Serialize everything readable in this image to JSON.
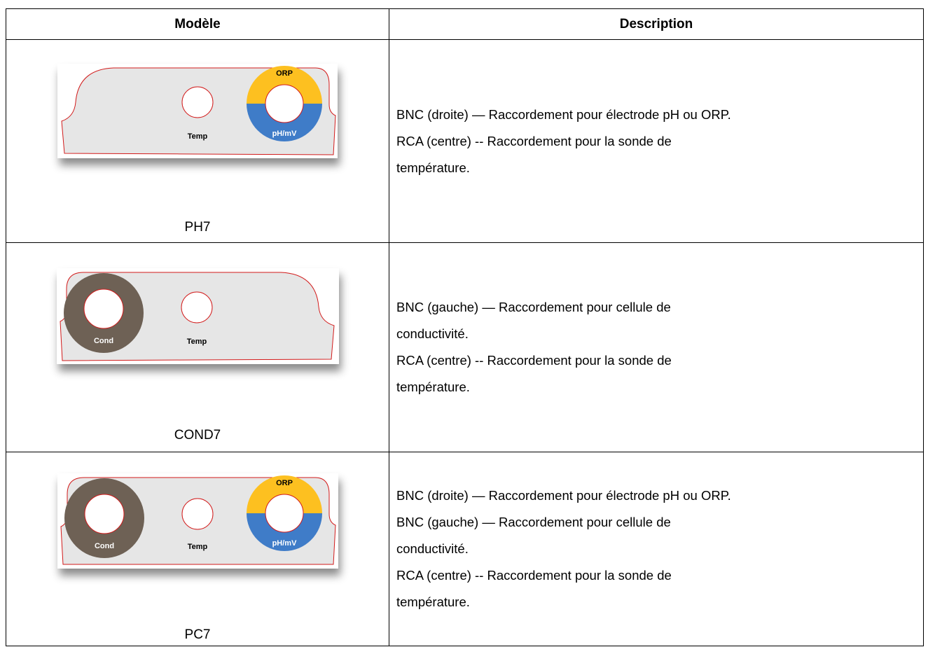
{
  "table": {
    "headers": [
      "Modèle",
      "Description"
    ],
    "rows": [
      {
        "model": "PH7",
        "panel": {
          "temp": "Temp",
          "orp": "ORP",
          "ph": "pH/mV"
        },
        "description": [
          "BNC (droite) — Raccordement pour électrode pH ou ORP.",
          "RCA (centre) -- Raccordement pour la sonde de",
          "température."
        ]
      },
      {
        "model": "COND7",
        "panel": {
          "cond": "Cond",
          "temp": "Temp"
        },
        "description": [
          "BNC (gauche) — Raccordement pour cellule de",
          "conductivité.",
          "RCA (centre) -- Raccordement pour la sonde de",
          "température."
        ]
      },
      {
        "model": "PC7",
        "panel": {
          "cond": "Cond",
          "temp": "Temp",
          "orp": "ORP",
          "ph": "pH/mV"
        },
        "description": [
          "BNC (droite) — Raccordement pour électrode pH ou ORP.",
          "BNC (gauche) — Raccordement pour cellule de",
          "conductivité.",
          "RCA (centre) -- Raccordement pour la sonde de",
          "température."
        ]
      }
    ]
  }
}
